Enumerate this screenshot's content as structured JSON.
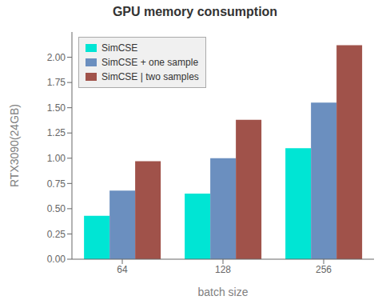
{
  "chart_data": {
    "type": "bar",
    "title": "GPU memory consumption",
    "x_label": "batch size",
    "y_label": "RTX3090(24GB)",
    "categories": [
      "64",
      "128",
      "256"
    ],
    "series": [
      {
        "name": "SimCSE",
        "color": "#00e5d4",
        "values": [
          0.43,
          0.65,
          1.1
        ]
      },
      {
        "name": "SimCSE + one sample",
        "color": "#6b8fbf",
        "values": [
          0.68,
          1.0,
          1.55
        ]
      },
      {
        "name": "SimCSE | two samples",
        "color": "#a0524a",
        "values": [
          0.97,
          1.38,
          2.12
        ]
      }
    ],
    "ylim": [
      0.0,
      2.25
    ],
    "yticks": [
      {
        "value": 0,
        "label": "0.00"
      },
      0.25,
      {
        "value": 0.5,
        "label": "0.50"
      },
      0.75,
      {
        "value": 1,
        "label": "1.00"
      },
      1.25,
      {
        "value": 1.5,
        "label": "1.50"
      },
      1.75,
      {
        "value": 2,
        "label": "2.00"
      }
    ],
    "grid": false,
    "legend": "upper left"
  }
}
